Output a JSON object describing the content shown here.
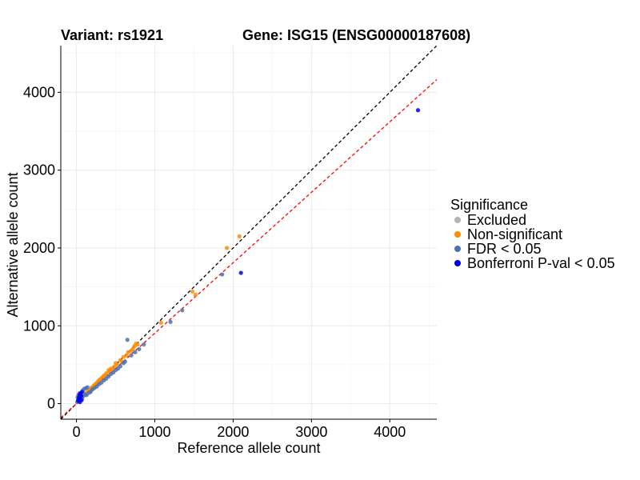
{
  "chart_data": {
    "type": "scatter",
    "title_left": "Variant: rs1921",
    "title_right": "Gene: ISG15 (ENSG00000187608)",
    "xlabel": "Reference allele count",
    "ylabel": "Alternative allele count",
    "xlim": [
      -200,
      4600
    ],
    "ylim": [
      -200,
      4600
    ],
    "xticks": [
      0,
      1000,
      2000,
      3000,
      4000
    ],
    "yticks": [
      0,
      1000,
      2000,
      3000,
      4000
    ],
    "grid": true,
    "legend": {
      "title": "Significance",
      "position": "right",
      "entries": [
        {
          "label": "Excluded",
          "color": "#b3b3b3"
        },
        {
          "label": "Non-significant",
          "color": "#ff8c00"
        },
        {
          "label": "FDR < 0.05",
          "color": "#4a72b0"
        },
        {
          "label": "Bonferroni P-val < 0.05",
          "color": "#0000ee"
        }
      ]
    },
    "reference_lines": [
      {
        "label": "y = x",
        "slope": 1.0,
        "intercept": 0,
        "color": "#000000",
        "style": "dashed"
      },
      {
        "label": "fitted",
        "slope": 0.905,
        "intercept": 0,
        "color": "#ff0000",
        "style": "dashed"
      }
    ],
    "series": [
      {
        "group": "Excluded",
        "color": "#b3b3b3",
        "points": []
      },
      {
        "group": "Non-significant",
        "color": "#ff8c00",
        "points": [
          [
            40,
            60
          ],
          [
            80,
            90
          ],
          [
            120,
            140
          ],
          [
            160,
            170
          ],
          [
            190,
            200
          ],
          [
            220,
            230
          ],
          [
            250,
            260
          ],
          [
            270,
            280
          ],
          [
            300,
            310
          ],
          [
            320,
            330
          ],
          [
            350,
            360
          ],
          [
            380,
            390
          ],
          [
            410,
            430
          ],
          [
            440,
            450
          ],
          [
            480,
            470
          ],
          [
            520,
            500
          ],
          [
            560,
            560
          ],
          [
            600,
            600
          ],
          [
            640,
            620
          ],
          [
            700,
            680
          ],
          [
            740,
            740
          ],
          [
            760,
            770
          ],
          [
            1080,
            1040
          ],
          [
            1480,
            1440
          ],
          [
            1520,
            1400
          ],
          [
            1920,
            2000
          ],
          [
            2080,
            2150
          ],
          [
            200,
            210
          ],
          [
            230,
            240
          ],
          [
            260,
            250
          ],
          [
            290,
            300
          ],
          [
            340,
            340
          ],
          [
            420,
            410
          ],
          [
            460,
            440
          ],
          [
            580,
            540
          ],
          [
            660,
            660
          ],
          [
            720,
            700
          ],
          [
            780,
            760
          ],
          [
            150,
            160
          ],
          [
            180,
            170
          ],
          [
            210,
            190
          ],
          [
            330,
            320
          ],
          [
            370,
            360
          ],
          [
            500,
            520
          ]
        ]
      },
      {
        "group": "FDR < 0.05",
        "color": "#4a72b0",
        "points": [
          [
            20,
            30
          ],
          [
            40,
            90
          ],
          [
            60,
            140
          ],
          [
            80,
            170
          ],
          [
            100,
            190
          ],
          [
            120,
            200
          ],
          [
            140,
            210
          ],
          [
            30,
            50
          ],
          [
            50,
            70
          ],
          [
            70,
            60
          ],
          [
            90,
            100
          ],
          [
            110,
            120
          ],
          [
            130,
            110
          ],
          [
            160,
            140
          ],
          [
            180,
            150
          ],
          [
            200,
            180
          ],
          [
            230,
            200
          ],
          [
            260,
            220
          ],
          [
            290,
            250
          ],
          [
            320,
            270
          ],
          [
            350,
            300
          ],
          [
            380,
            320
          ],
          [
            410,
            350
          ],
          [
            440,
            380
          ],
          [
            470,
            400
          ],
          [
            500,
            430
          ],
          [
            530,
            450
          ],
          [
            560,
            480
          ],
          [
            600,
            520
          ],
          [
            620,
            540
          ],
          [
            650,
            820
          ],
          [
            700,
            620
          ],
          [
            750,
            660
          ],
          [
            800,
            700
          ],
          [
            860,
            760
          ],
          [
            1200,
            1050
          ],
          [
            1350,
            1200
          ],
          [
            1860,
            1660
          ],
          [
            10,
            20
          ],
          [
            15,
            80
          ],
          [
            25,
            110
          ],
          [
            35,
            130
          ]
        ]
      },
      {
        "group": "Bonferroni P-val < 0.05",
        "color": "#0000ee",
        "points": [
          [
            4360,
            3770
          ],
          [
            2100,
            1680
          ],
          [
            20,
            40
          ],
          [
            30,
            80
          ],
          [
            40,
            110
          ],
          [
            50,
            130
          ],
          [
            60,
            100
          ],
          [
            70,
            150
          ],
          [
            35,
            60
          ],
          [
            45,
            20
          ],
          [
            55,
            90
          ],
          [
            65,
            45
          ]
        ]
      }
    ]
  }
}
